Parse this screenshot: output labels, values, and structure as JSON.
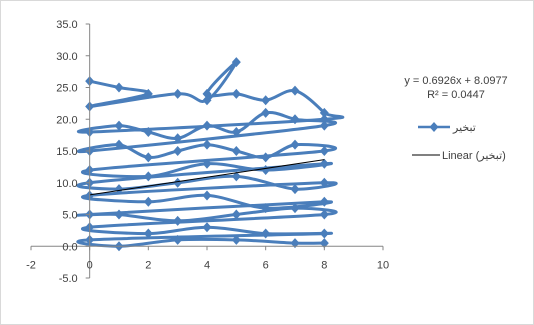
{
  "chart_data": {
    "type": "scatter",
    "title": "",
    "xlabel": "",
    "ylabel": "",
    "xlim": [
      -2,
      10
    ],
    "ylim": [
      -5,
      35
    ],
    "x_ticks": [
      "-2",
      "0",
      "2",
      "4",
      "6",
      "8",
      "10"
    ],
    "y_ticks": [
      "-5.0",
      "0.0",
      "5.0",
      "10.0",
      "15.0",
      "20.0",
      "25.0",
      "30.0",
      "35.0"
    ],
    "x_tick_values": [
      -2,
      0,
      2,
      4,
      6,
      8,
      10
    ],
    "y_tick_values": [
      -5,
      0,
      5,
      10,
      15,
      20,
      25,
      30,
      35
    ],
    "grid": false,
    "legend_position": "right",
    "series": [
      {
        "name": "تبخير",
        "color": "#4a7ebb",
        "marker": "diamond",
        "smoothed_lines": true,
        "x": [
          0,
          1,
          2,
          0,
          3,
          4,
          5,
          4,
          5,
          6,
          7,
          8,
          8,
          0,
          1,
          2,
          3,
          4,
          5,
          6,
          7,
          8,
          0,
          1,
          2,
          3,
          4,
          5,
          6,
          7,
          8,
          0,
          2,
          4,
          6,
          8,
          0,
          1,
          3,
          5,
          7,
          8,
          0,
          2,
          4,
          6,
          8,
          0,
          1,
          3,
          5,
          7,
          8,
          0,
          2,
          4,
          6,
          8,
          0,
          1,
          3,
          5,
          7,
          8
        ],
        "y": [
          26,
          25,
          24,
          22,
          24,
          23,
          29,
          24,
          24,
          23,
          24.5,
          21,
          20,
          18,
          19,
          18,
          17,
          19,
          18,
          21,
          20,
          19,
          15,
          16,
          14,
          15,
          16,
          15,
          14,
          16,
          15,
          12,
          11,
          13,
          12,
          13,
          10,
          9,
          10,
          11,
          9,
          10,
          8,
          7,
          8,
          6,
          7,
          5,
          5,
          4,
          5,
          6,
          5,
          3,
          2,
          3,
          2,
          2,
          1,
          0,
          1,
          1,
          0.5,
          0.5
        ]
      }
    ],
    "trendline": {
      "name": "Linear (تبخير)",
      "type": "linear",
      "slope": 0.6926,
      "intercept": 8.0977,
      "r_squared": 0.0447,
      "x_range": [
        0,
        8
      ],
      "color": "#000000",
      "equation_text": "y = 0.6926x + 8.0977",
      "r2_text": "R² = 0.0447"
    },
    "legend": {
      "series_label": "تبخير",
      "trend_label": "Linear (تبخير)"
    }
  }
}
